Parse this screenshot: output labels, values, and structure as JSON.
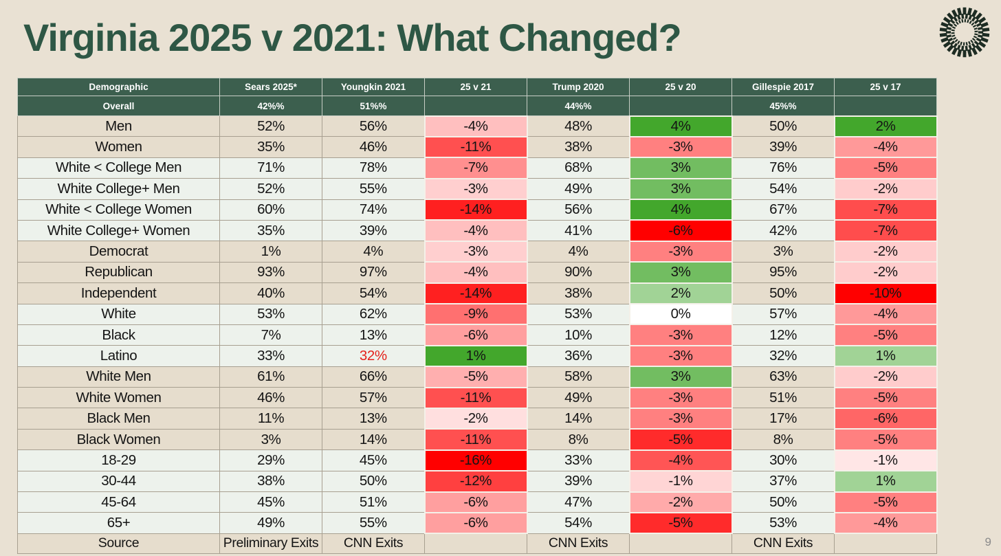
{
  "page": {
    "title": "Virginia 2025 v 2021: What Changed?",
    "page_number": "9"
  },
  "colors": {
    "background": "#e9e1d3",
    "title": "#2e5745",
    "header_bg": "#3c5f4e",
    "header_text": "#ffffff",
    "beige_row": "#e6ddcd",
    "light_row": "#edf2ec",
    "full_red": "#ff0000",
    "full_green": "#43a72c",
    "zero_cell": "#ffffff",
    "highlight_text": "#e4211b",
    "body_text": "#141414",
    "grid": "#a79f90",
    "page_number": "#8b8b8b",
    "logo": "#1d2c23"
  },
  "logo": {
    "icon": "dotted-sunburst-logo"
  },
  "chart_data": {
    "type": "table",
    "title": "Virginia 2025 v 2021: What Changed?",
    "layout": {
      "heatmap_columns": [
        "d21",
        "d20",
        "d17"
      ],
      "scale": "per-column white-to-red for negatives, white-to-green for positives, white at 0"
    },
    "columns": [
      "Demographic",
      "Sears 2025*",
      "Youngkin 2021",
      "25 v 21",
      "Trump 2020",
      "25 v 20",
      "Gillespie 2017",
      "25 v 17"
    ],
    "overall_row": {
      "label": "Overall",
      "sears": "42%",
      "youngkin": "51%",
      "d21": "",
      "trump": "44%",
      "d20": "",
      "gillespie": "45%",
      "d17": ""
    },
    "rows": [
      {
        "label": "Men",
        "sears": 52,
        "youngkin": 56,
        "d21": -4,
        "trump": 48,
        "d20": 4,
        "gillespie": 50,
        "d17": 2,
        "band": "beige"
      },
      {
        "label": "Women",
        "sears": 35,
        "youngkin": 46,
        "d21": -11,
        "trump": 38,
        "d20": -3,
        "gillespie": 39,
        "d17": -4,
        "band": "beige"
      },
      {
        "label": "White < College Men",
        "sears": 71,
        "youngkin": 78,
        "d21": -7,
        "trump": 68,
        "d20": 3,
        "gillespie": 76,
        "d17": -5,
        "band": "light"
      },
      {
        "label": "White College+ Men",
        "sears": 52,
        "youngkin": 55,
        "d21": -3,
        "trump": 49,
        "d20": 3,
        "gillespie": 54,
        "d17": -2,
        "band": "light"
      },
      {
        "label": "White < College Women",
        "sears": 60,
        "youngkin": 74,
        "d21": -14,
        "trump": 56,
        "d20": 4,
        "gillespie": 67,
        "d17": -7,
        "band": "light"
      },
      {
        "label": "White College+ Women",
        "sears": 35,
        "youngkin": 39,
        "d21": -4,
        "trump": 41,
        "d20": -6,
        "gillespie": 42,
        "d17": -7,
        "band": "light"
      },
      {
        "label": "Democrat",
        "sears": 1,
        "youngkin": 4,
        "d21": -3,
        "trump": 4,
        "d20": -3,
        "gillespie": 3,
        "d17": -2,
        "band": "beige"
      },
      {
        "label": "Republican",
        "sears": 93,
        "youngkin": 97,
        "d21": -4,
        "trump": 90,
        "d20": 3,
        "gillespie": 95,
        "d17": -2,
        "band": "beige"
      },
      {
        "label": "Independent",
        "sears": 40,
        "youngkin": 54,
        "d21": -14,
        "trump": 38,
        "d20": 2,
        "gillespie": 50,
        "d17": -10,
        "band": "beige"
      },
      {
        "label": "White",
        "sears": 53,
        "youngkin": 62,
        "d21": -9,
        "trump": 53,
        "d20": 0,
        "gillespie": 57,
        "d17": -4,
        "band": "light"
      },
      {
        "label": "Black",
        "sears": 7,
        "youngkin": 13,
        "d21": -6,
        "trump": 10,
        "d20": -3,
        "gillespie": 12,
        "d17": -5,
        "band": "light"
      },
      {
        "label": "Latino",
        "sears": 33,
        "youngkin": 32,
        "d21": 1,
        "trump": 36,
        "d20": -3,
        "gillespie": 32,
        "d17": 1,
        "band": "light",
        "youngkin_highlight": true
      },
      {
        "label": "White Men",
        "sears": 61,
        "youngkin": 66,
        "d21": -5,
        "trump": 58,
        "d20": 3,
        "gillespie": 63,
        "d17": -2,
        "band": "beige"
      },
      {
        "label": "White Women",
        "sears": 46,
        "youngkin": 57,
        "d21": -11,
        "trump": 49,
        "d20": -3,
        "gillespie": 51,
        "d17": -5,
        "band": "beige"
      },
      {
        "label": "Black Men",
        "sears": 11,
        "youngkin": 13,
        "d21": -2,
        "trump": 14,
        "d20": -3,
        "gillespie": 17,
        "d17": -6,
        "band": "beige"
      },
      {
        "label": "Black Women",
        "sears": 3,
        "youngkin": 14,
        "d21": -11,
        "trump": 8,
        "d20": -5,
        "gillespie": 8,
        "d17": -5,
        "band": "beige"
      },
      {
        "label": "18-29",
        "sears": 29,
        "youngkin": 45,
        "d21": -16,
        "trump": 33,
        "d20": -4,
        "gillespie": 30,
        "d17": -1,
        "band": "light"
      },
      {
        "label": "30-44",
        "sears": 38,
        "youngkin": 50,
        "d21": -12,
        "trump": 39,
        "d20": -1,
        "gillespie": 37,
        "d17": 1,
        "band": "light"
      },
      {
        "label": "45-64",
        "sears": 45,
        "youngkin": 51,
        "d21": -6,
        "trump": 47,
        "d20": -2,
        "gillespie": 50,
        "d17": -5,
        "band": "light"
      },
      {
        "label": "65+",
        "sears": 49,
        "youngkin": 55,
        "d21": -6,
        "trump": 54,
        "d20": -5,
        "gillespie": 53,
        "d17": -4,
        "band": "light"
      }
    ],
    "source_row": {
      "label": "Source",
      "sears": "Preliminary Exits",
      "youngkin": "CNN Exits",
      "d21": "",
      "trump": "CNN Exits",
      "d20": "",
      "gillespie": "CNN Exits",
      "d17": ""
    }
  }
}
